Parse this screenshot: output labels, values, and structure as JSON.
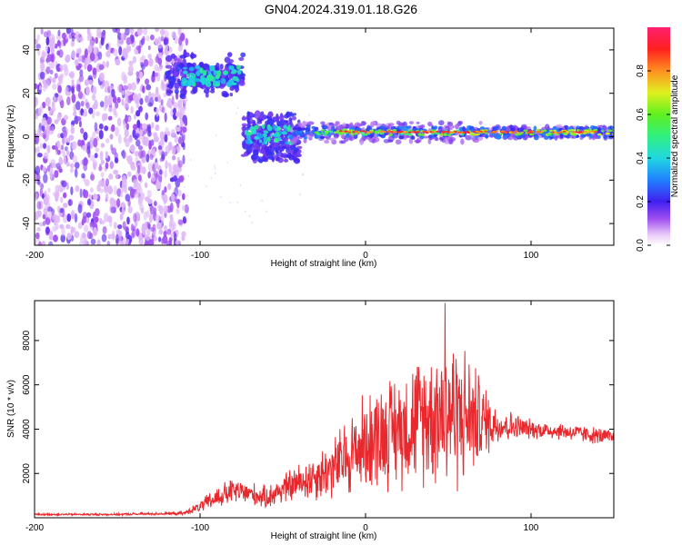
{
  "title": "GN04.2024.319.01.18.G26",
  "colors": {
    "line": "#e8282d",
    "frame": "#000000"
  },
  "chart_data": [
    {
      "type": "heatmap",
      "xlabel": "Height of straight line (km)",
      "ylabel": "Frequency (Hz)",
      "xlim": [
        -200,
        150
      ],
      "ylim": [
        -50,
        50
      ],
      "xticks": [
        -200,
        -100,
        0,
        100
      ],
      "yticks": [
        -40,
        -20,
        0,
        20,
        40
      ],
      "colorbar": {
        "label": "Normalized spectral amplitude",
        "range": [
          0.0,
          1.0
        ],
        "ticks": [
          "0.0",
          "0.2",
          "0.4",
          "0.6",
          "0.8"
        ],
        "colormap": [
          "#ffffff",
          "#c89bf0",
          "#7b2fd8",
          "#3024f0",
          "#20a0ff",
          "#20e0e0",
          "#30f060",
          "#d0f020",
          "#ff9020",
          "#ff2020",
          "#ff2070"
        ]
      },
      "features": [
        {
          "x_range": [
            -200,
            -110
          ],
          "freq_range": [
            -50,
            50
          ],
          "amplitude": 0.1,
          "description": "scattered noise"
        },
        {
          "x_range": [
            -120,
            -75
          ],
          "freq_center": 28,
          "amplitude": 0.4
        },
        {
          "x_range": [
            -72,
            -45
          ],
          "freq_center": 0,
          "amplitude": 0.3
        },
        {
          "x_range": [
            -45,
            150
          ],
          "freq_center": 2,
          "amplitude": 0.95
        }
      ]
    },
    {
      "type": "line",
      "xlabel": "Height of straight line (km)",
      "ylabel": "SNR (10 * v/v)",
      "xlim": [
        -200,
        150
      ],
      "ylim": [
        0,
        9800
      ],
      "xticks": [
        -200,
        -100,
        0,
        100
      ],
      "yticks": [
        2000,
        4000,
        6000,
        8000
      ],
      "envelope": {
        "x": [
          -200,
          -150,
          -110,
          -100,
          -90,
          -80,
          -70,
          -60,
          -50,
          -40,
          -30,
          -20,
          -10,
          0,
          10,
          20,
          30,
          40,
          45,
          50,
          55,
          60,
          65,
          70,
          80,
          100,
          120,
          140,
          150
        ],
        "mean": [
          150,
          150,
          200,
          500,
          900,
          1200,
          1100,
          900,
          1300,
          1600,
          1900,
          2200,
          2800,
          3400,
          3800,
          4000,
          4400,
          4700,
          4800,
          4900,
          4700,
          4600,
          4500,
          4400,
          4200,
          4000,
          3900,
          3700,
          3600
        ],
        "spread": [
          50,
          60,
          80,
          300,
          600,
          700,
          600,
          600,
          800,
          1000,
          1300,
          1600,
          2200,
          2600,
          2800,
          3000,
          3300,
          3600,
          4000,
          4200,
          4000,
          3600,
          3000,
          2200,
          1000,
          500,
          450,
          450,
          450
        ]
      },
      "peak": {
        "x": 48,
        "y": 9700
      }
    }
  ]
}
